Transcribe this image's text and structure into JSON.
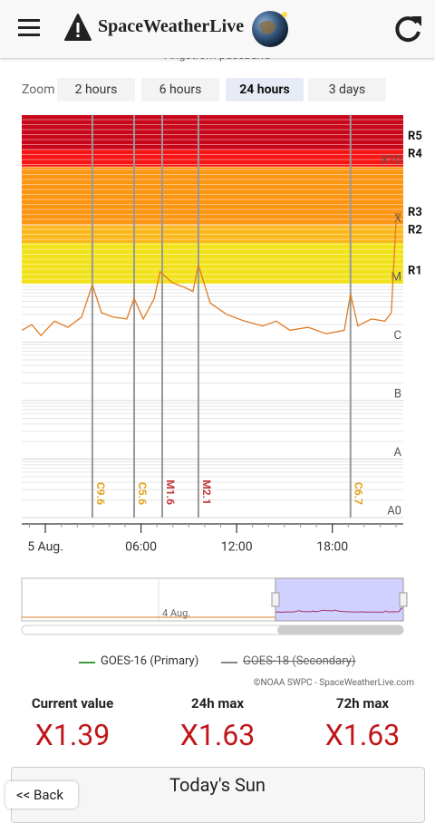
{
  "header": {
    "title": "SpaceWeatherLive"
  },
  "subtitle": "Ångström passband",
  "zoom": {
    "label": "Zoom",
    "options": [
      "2 hours",
      "6 hours",
      "24 hours",
      "3 days"
    ],
    "selected": 2
  },
  "chart_data": {
    "type": "line",
    "log_scale": true,
    "x": [
      -1.48,
      -0.85,
      -0.28,
      0.57,
      1.42,
      2.27,
      2.95,
      3.52,
      4.26,
      5.11,
      5.57,
      6.14,
      6.82,
      7.2,
      7.95,
      8.81,
      9.26,
      9.6,
      10.34,
      11.36,
      12.5,
      13.64,
      14.49,
      15.34,
      16.48,
      17.61,
      18.75,
      19.14,
      19.6,
      20.45,
      21.3,
      21.7,
      21.99,
      22.1,
      22.3
    ],
    "series": [
      {
        "name": "GOES-16 (Primary)",
        "color": "#e07b24",
        "legend_color": "#3a9a3a",
        "values": [
          1.6e-06,
          2e-06,
          1.3e-06,
          2.3e-06,
          1.8e-06,
          2.7e-06,
          9.6e-06,
          3.2e-06,
          2.7e-06,
          2.5e-06,
          5.6e-06,
          2.5e-06,
          5.5e-06,
          1.6e-05,
          1.05e-05,
          8.5e-06,
          7.4e-06,
          2.1e-05,
          4.7e-06,
          3e-06,
          2.3e-06,
          1.9e-06,
          2.3e-06,
          1.6e-06,
          1.8e-06,
          1.4e-06,
          1.6e-06,
          6.7e-06,
          1.9e-06,
          2.5e-06,
          2.3e-06,
          3.2e-06,
          0.000115,
          0.000163,
          0.000139
        ]
      },
      {
        "name": "GOES-18 (Secondary)",
        "legend_color": "#888888",
        "hidden": true
      }
    ],
    "xlim": [
      -1.48,
      22.45
    ],
    "ylim": [
      1e-09,
      0.0077
    ],
    "xticks": [
      {
        "value": 0,
        "label": "5 Aug."
      },
      {
        "value": 6,
        "label": "06:00"
      },
      {
        "value": 12,
        "label": "12:00"
      },
      {
        "value": 18,
        "label": "18:00"
      }
    ],
    "yticks": [
      {
        "value": 1e-09,
        "label": "A0"
      },
      {
        "value": 1e-08,
        "label": "A"
      },
      {
        "value": 1e-07,
        "label": "B"
      },
      {
        "value": 1e-06,
        "label": "C"
      },
      {
        "value": 1e-05,
        "label": "M"
      },
      {
        "value": 0.0001,
        "label": "X"
      },
      {
        "value": 0.001,
        "label": "X10"
      }
    ],
    "radio_levels": [
      {
        "label": "R1",
        "value": 1e-05,
        "color": "#f2e21a"
      },
      {
        "label": "R2",
        "value": 5e-05,
        "color": "#fbb81c"
      },
      {
        "label": "R3",
        "value": 0.0001,
        "color": "#fb9512"
      },
      {
        "label": "R4",
        "value": 0.001,
        "color": "#f61414"
      },
      {
        "label": "R5",
        "value": 0.002,
        "color": "#c8071a"
      }
    ],
    "flares": [
      {
        "label": "C9.6",
        "x": 2.95,
        "color": "#e2a21a"
      },
      {
        "label": "C5.6",
        "x": 5.57,
        "color": "#e2a21a"
      },
      {
        "label": "M1.6",
        "x": 7.33,
        "color": "#c23a3a"
      },
      {
        "label": "M2.1",
        "x": 9.6,
        "color": "#c23a3a"
      },
      {
        "label": "C6.7",
        "x": 19.14,
        "color": "#e2a21a"
      }
    ],
    "navigator_label": "4 Aug."
  },
  "credit": "©NOAA SWPC - SpaceWeatherLive.com",
  "stats": [
    {
      "label": "Current value",
      "value": "X1.39"
    },
    {
      "label": "24h max",
      "value": "X1.63"
    },
    {
      "label": "72h max",
      "value": "X1.63"
    }
  ],
  "section": {
    "title": "Today's Sun",
    "back": "<< Back"
  }
}
